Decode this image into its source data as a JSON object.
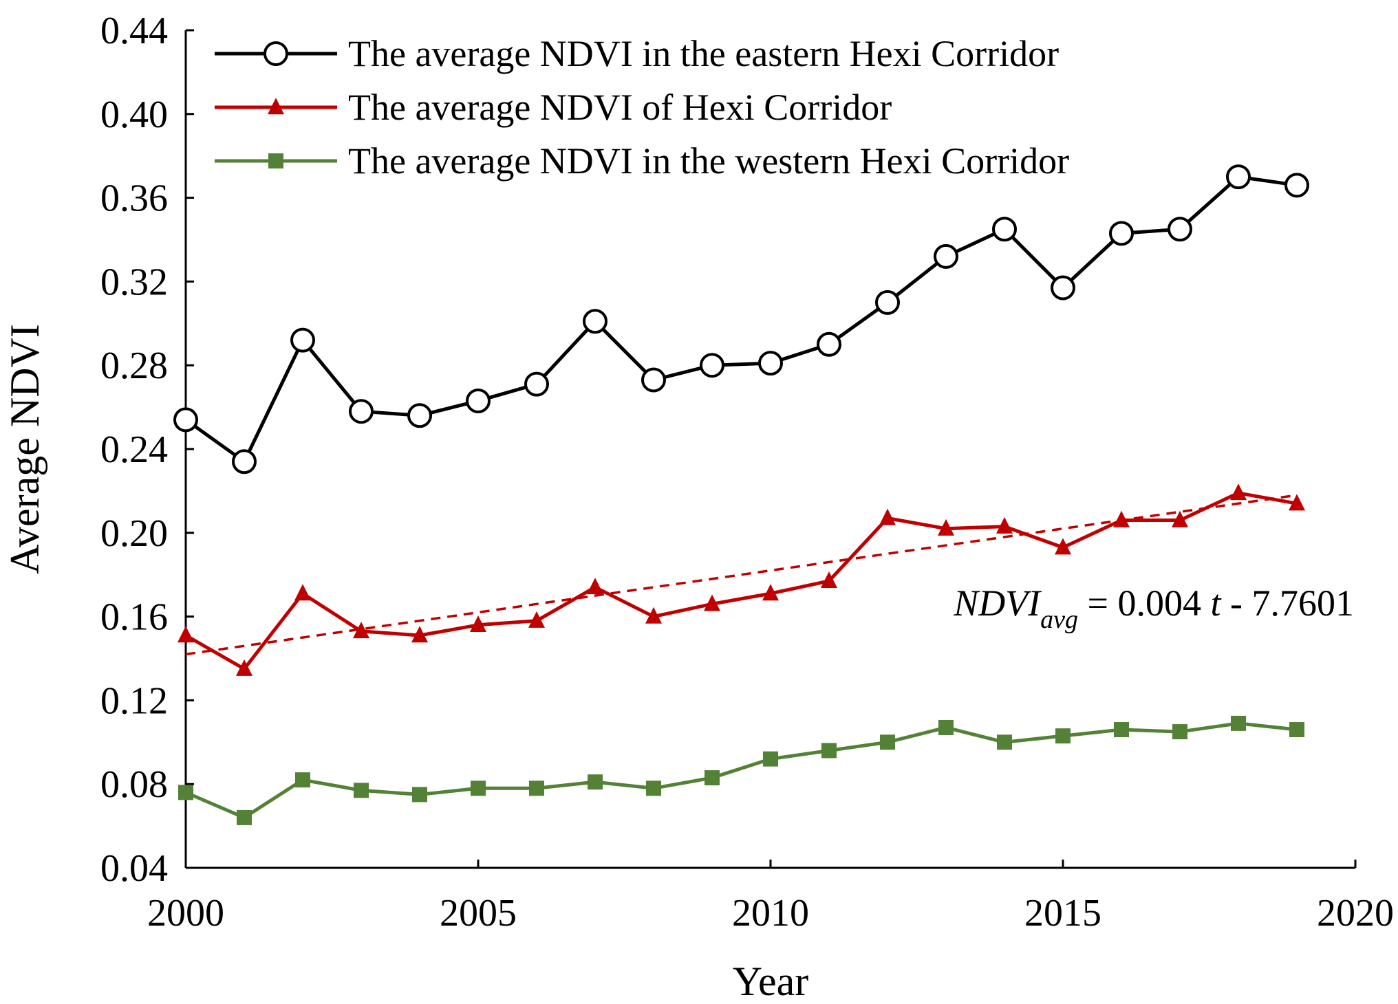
{
  "chart_data": {
    "type": "line",
    "title": "",
    "xlabel": "Year",
    "ylabel": "Average NDVI",
    "xlim": [
      2000,
      2020
    ],
    "ylim": [
      0.04,
      0.44
    ],
    "xticks": [
      "2000",
      "2005",
      "2010",
      "2015",
      "2020"
    ],
    "yticks": [
      "0.04",
      "0.08",
      "0.12",
      "0.16",
      "0.20",
      "0.24",
      "0.28",
      "0.32",
      "0.36",
      "0.40",
      "0.44"
    ],
    "grid": false,
    "legend_position": "top-left",
    "x": [
      2000,
      2001,
      2002,
      2003,
      2004,
      2005,
      2006,
      2007,
      2008,
      2009,
      2010,
      2011,
      2012,
      2013,
      2014,
      2015,
      2016,
      2017,
      2018,
      2019
    ],
    "series": [
      {
        "name": "The average NDVI in the eastern Hexi Corridor",
        "color": "#000000",
        "marker": "open-circle",
        "values": [
          0.254,
          0.234,
          0.292,
          0.258,
          0.256,
          0.263,
          0.271,
          0.301,
          0.273,
          0.28,
          0.281,
          0.29,
          0.31,
          0.332,
          0.345,
          0.317,
          0.343,
          0.345,
          0.37,
          0.366
        ]
      },
      {
        "name": "The average NDVI of Hexi Corridor",
        "color": "#c00000",
        "marker": "filled-triangle",
        "values": [
          0.151,
          0.135,
          0.171,
          0.153,
          0.151,
          0.156,
          0.158,
          0.174,
          0.16,
          0.166,
          0.171,
          0.177,
          0.207,
          0.202,
          0.203,
          0.193,
          0.206,
          0.206,
          0.219,
          0.214
        ]
      },
      {
        "name": "The average NDVI in the western Hexi Corridor",
        "color": "#538135",
        "marker": "filled-square",
        "values": [
          0.076,
          0.064,
          0.082,
          0.077,
          0.075,
          0.078,
          0.078,
          0.081,
          0.078,
          0.083,
          0.092,
          0.096,
          0.1,
          0.107,
          0.1,
          0.103,
          0.106,
          0.105,
          0.109,
          0.106
        ]
      }
    ],
    "trendline": {
      "series": "The average NDVI of Hexi Corridor",
      "style": "dashed",
      "color": "#c00000",
      "x": [
        2000,
        2019
      ],
      "y": [
        0.142,
        0.218
      ]
    },
    "equation": {
      "lhs": "NDVI",
      "lhs_subscript": "avg",
      "rhs_prefix": " = 0.004 ",
      "variable": "t",
      "rhs_suffix": " - 7.7601"
    }
  }
}
